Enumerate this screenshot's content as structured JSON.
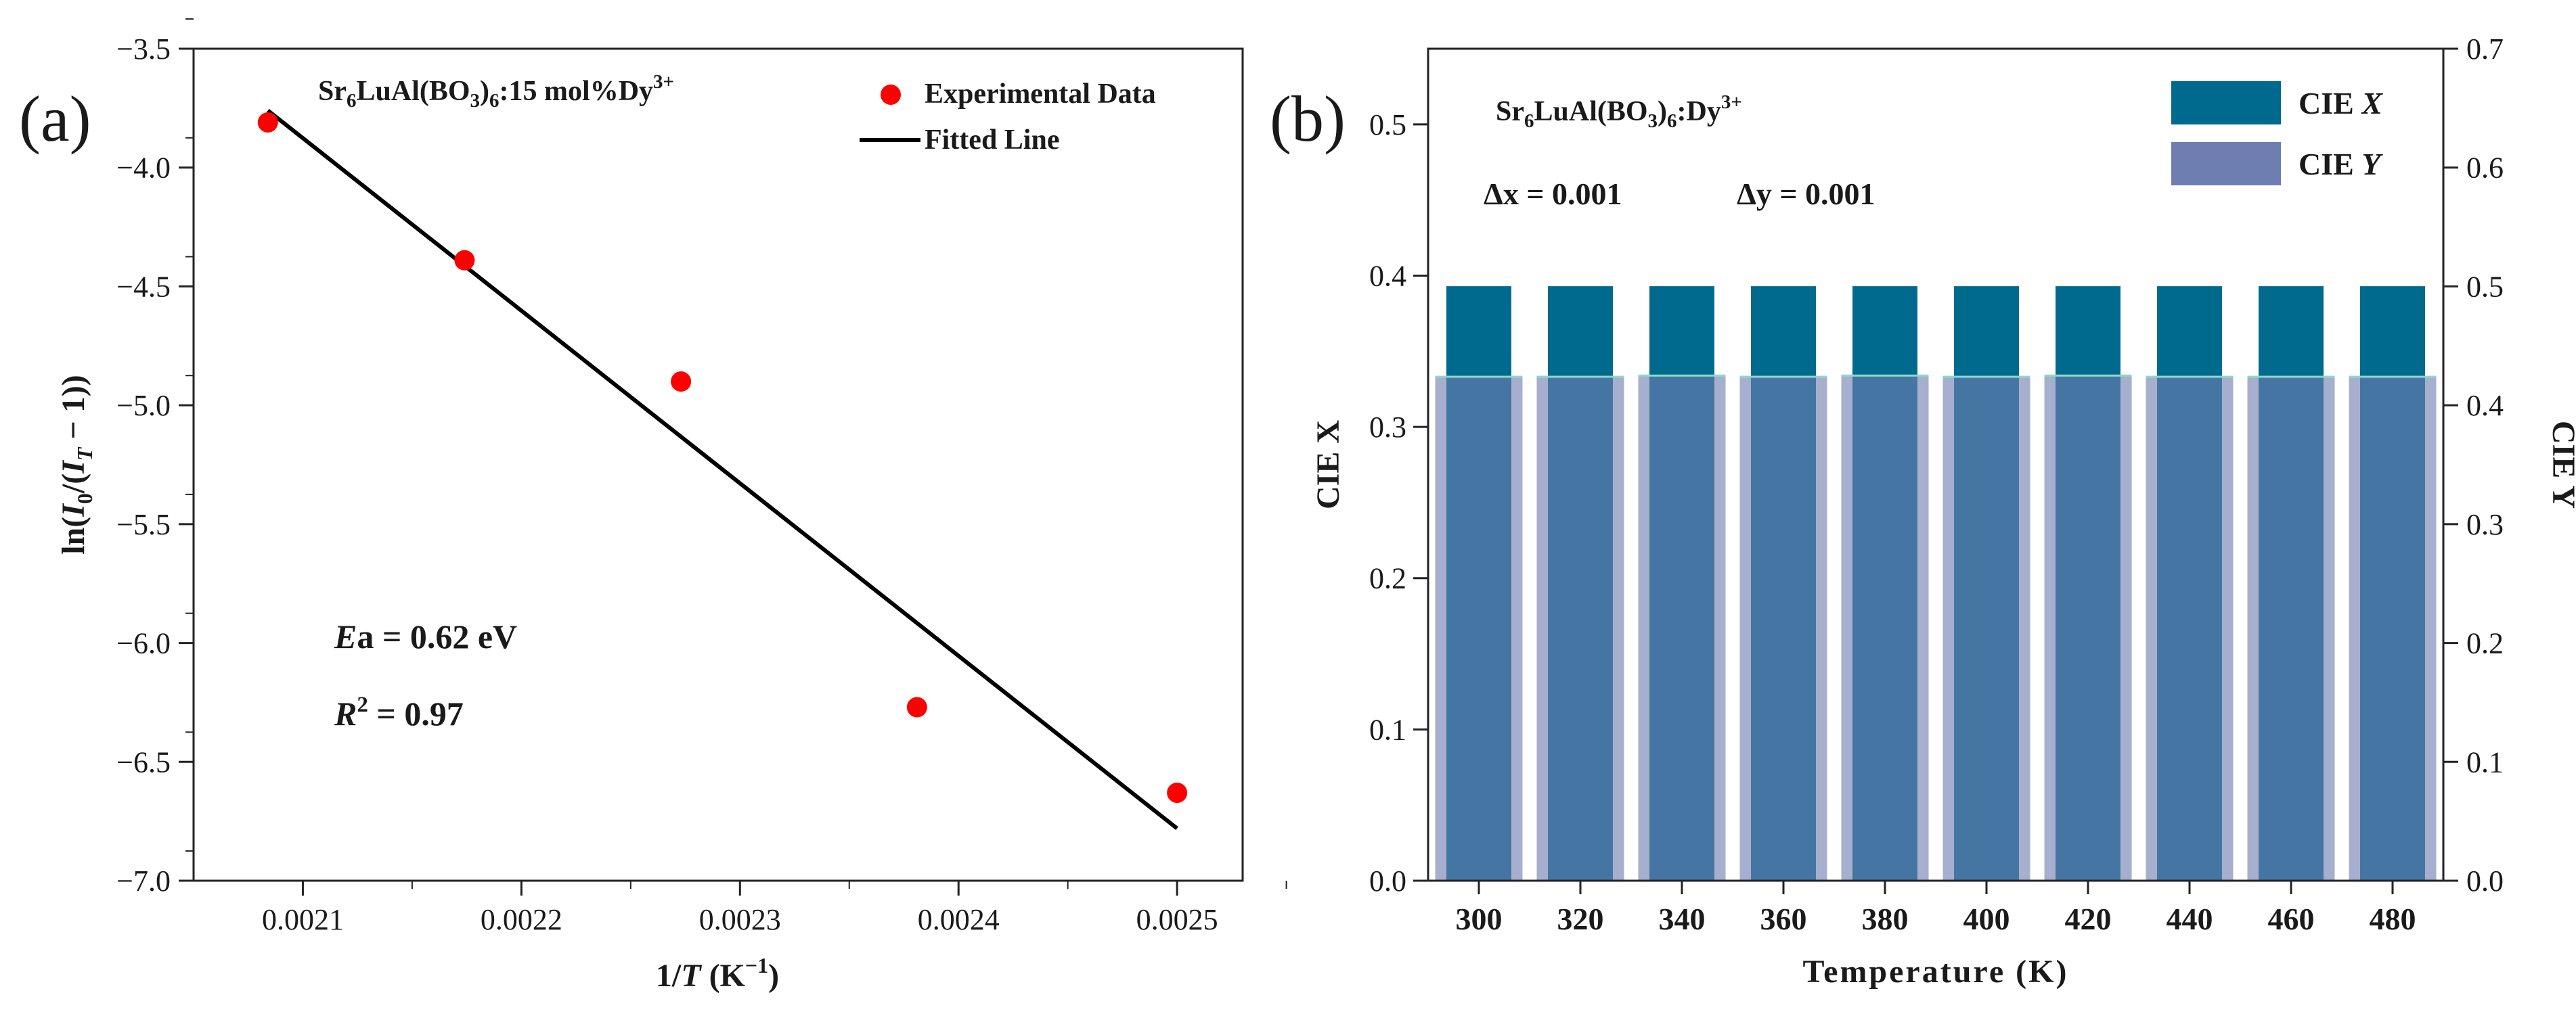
{
  "chart_data": [
    {
      "panel_label": "(a)",
      "type": "scatter",
      "title": "Sr6LuAl(BO3)6:15 mol%Dy3+",
      "title_parts": [
        "Sr",
        "6",
        "LuAl(BO",
        "3",
        ")",
        "6",
        ":15 mol%Dy",
        "3+"
      ],
      "xlabel_parts": [
        "1/",
        "T",
        "  (K",
        "−1",
        ")"
      ],
      "ylabel_parts": [
        "ln(",
        "I",
        "0",
        "/(",
        "I",
        "T",
        " − 1))"
      ],
      "xlim": [
        0.00205,
        0.00253
      ],
      "ylim": [
        -7.0,
        -3.5
      ],
      "xticks": [
        0.0021,
        0.0022,
        0.0023,
        0.0024,
        0.0025
      ],
      "xtick_labels": [
        "0.0021",
        "0.0022",
        "0.0023",
        "0.0024",
        "0.0025"
      ],
      "yticks": [
        -7.0,
        -6.5,
        -6.0,
        -5.5,
        -5.0,
        -4.5,
        -4.0,
        -3.5
      ],
      "ytick_labels": [
        "−7.0",
        "−6.5",
        "−6.0",
        "−5.5",
        "−5.0",
        "−4.5",
        "−4.0",
        "−3.5"
      ],
      "series": [
        {
          "name": "Experimental Data",
          "kind": "scatter",
          "color": "#ff0000",
          "points": [
            {
              "x": 0.002084,
              "y": -3.81
            },
            {
              "x": 0.002174,
              "y": -4.39
            },
            {
              "x": 0.002273,
              "y": -4.9
            },
            {
              "x": 0.002381,
              "y": -6.27
            },
            {
              "x": 0.0025,
              "y": -6.63
            }
          ]
        },
        {
          "name": "Fitted Line",
          "kind": "line",
          "color": "#000000",
          "points": [
            {
              "x": 0.002084,
              "y": -3.76
            },
            {
              "x": 0.0025,
              "y": -6.78
            }
          ]
        }
      ],
      "legend": {
        "position": "top-right",
        "entries": [
          "Experimental Data",
          "Fitted Line"
        ]
      },
      "annotations": {
        "ea_var": "E",
        "ea_rest": "a = 0.62 eV",
        "r2_var": "R",
        "r2_sup": "2",
        "r2_rest": " = 0.97"
      }
    },
    {
      "panel_label": "(b)",
      "type": "bar",
      "title": "Sr6LuAl(BO3)6:Dy3+",
      "title_parts": [
        "Sr",
        "6",
        "LuAl(BO",
        "3",
        ")",
        "6",
        ":Dy",
        "3+"
      ],
      "xlabel": "Temperature (K)",
      "ylabel_left": "CIE X",
      "ylabel_right": "CIE Y",
      "categories": [
        "300",
        "320",
        "340",
        "360",
        "380",
        "400",
        "420",
        "440",
        "460",
        "480"
      ],
      "ylim_left": [
        0.0,
        0.55
      ],
      "ylim_right": [
        0.0,
        0.7
      ],
      "yticks_left": [
        0.0,
        0.1,
        0.2,
        0.3,
        0.4,
        0.5
      ],
      "ytick_labels_left": [
        "0.0",
        "0.1",
        "0.2",
        "0.3",
        "0.4",
        "0.5"
      ],
      "yticks_right": [
        0.0,
        0.1,
        0.2,
        0.3,
        0.4,
        0.5,
        0.6,
        0.7
      ],
      "ytick_labels_right": [
        "0.0",
        "0.1",
        "0.2",
        "0.3",
        "0.4",
        "0.5",
        "0.6",
        "0.7"
      ],
      "series": [
        {
          "name": "CIE X",
          "axis": "left",
          "color": "#006a8e",
          "values": [
            0.393,
            0.393,
            0.393,
            0.393,
            0.393,
            0.393,
            0.393,
            0.393,
            0.393,
            0.393
          ]
        },
        {
          "name": "CIE Y",
          "axis": "right",
          "color": "#6f7eb0",
          "values": [
            0.424,
            0.424,
            0.425,
            0.424,
            0.425,
            0.424,
            0.425,
            0.424,
            0.424,
            0.424
          ]
        }
      ],
      "legend": {
        "position": "top-right",
        "entries": [
          {
            "name": "CIE ",
            "var": "X"
          },
          {
            "name": "CIE ",
            "var": "Y"
          }
        ]
      },
      "annotations": {
        "dx": "Δx = 0.001",
        "dy": "Δy = 0.001"
      }
    }
  ]
}
